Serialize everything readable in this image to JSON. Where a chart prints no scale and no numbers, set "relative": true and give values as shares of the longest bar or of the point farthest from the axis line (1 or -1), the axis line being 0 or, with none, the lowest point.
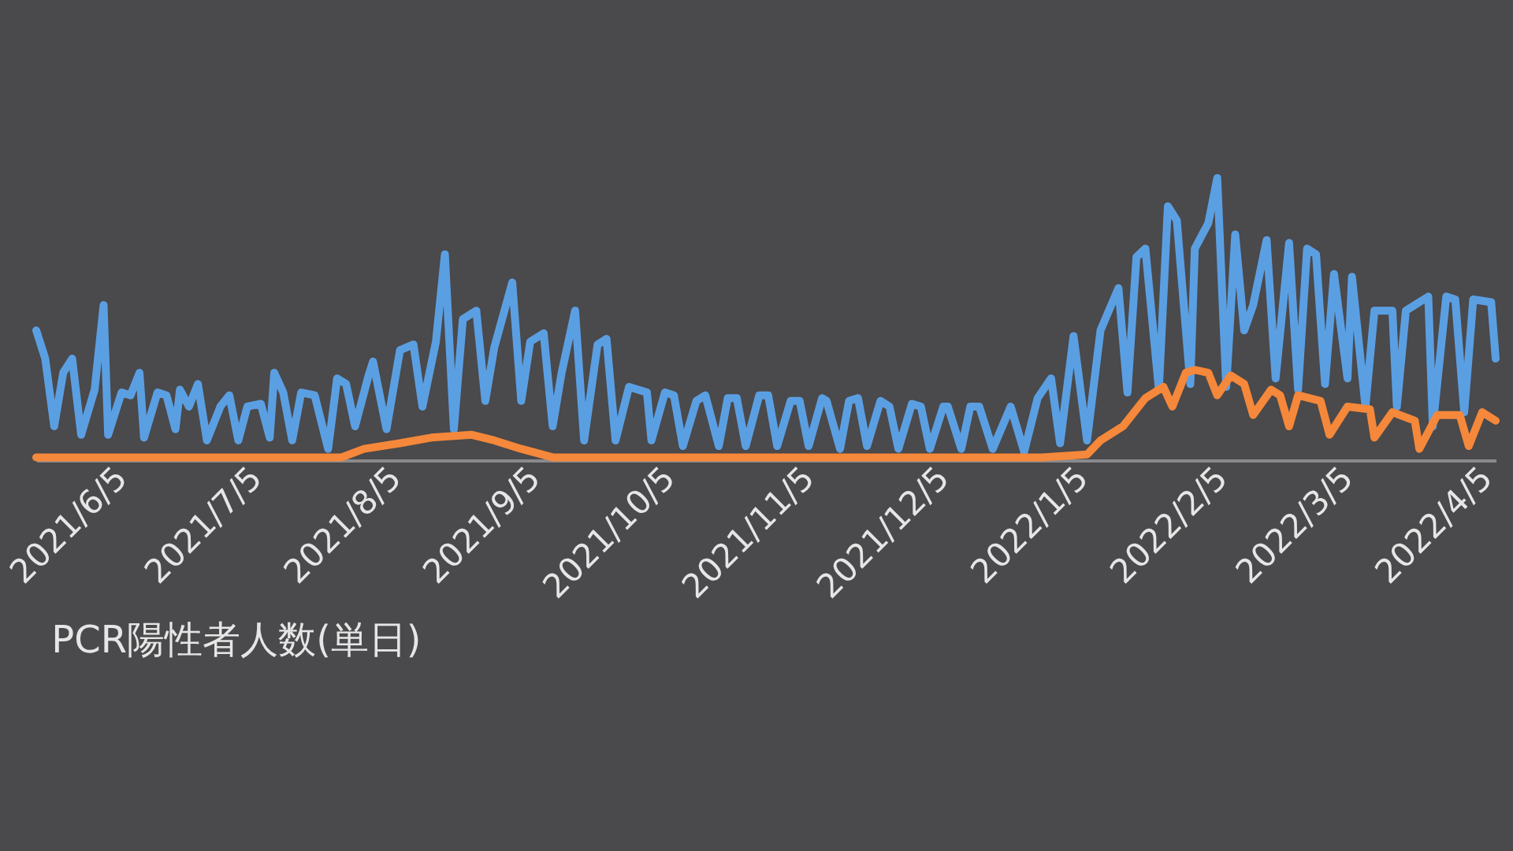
{
  "chart_data": {
    "type": "line",
    "title": "PCR陽性者人数(単日)",
    "relative": true,
    "tick_labels": "x",
    "xlim": [
      "2021-05-17",
      "2022-04-07"
    ],
    "xticks": [
      {
        "value": "2021-06-05",
        "label": "2021/6/5"
      },
      {
        "value": "2021-07-05",
        "label": "2021/7/5"
      },
      {
        "value": "2021-08-05",
        "label": "2021/8/5"
      },
      {
        "value": "2021-09-05",
        "label": "2021/9/5"
      },
      {
        "value": "2021-10-05",
        "label": "2021/10/5"
      },
      {
        "value": "2021-11-05",
        "label": "2021/11/5"
      },
      {
        "value": "2021-12-05",
        "label": "2021/12/5"
      },
      {
        "value": "2022-01-05",
        "label": "2022/1/5"
      },
      {
        "value": "2022-02-05",
        "label": "2022/2/5"
      },
      {
        "value": "2022-03-05",
        "label": "2022/3/5"
      },
      {
        "value": "2022-04-05",
        "label": "2022/4/5"
      }
    ],
    "series": [
      {
        "color": "#5b9fe3",
        "x": [
          "2021-05-17",
          "2021-05-19",
          "2021-05-21",
          "2021-05-23",
          "2021-05-25",
          "2021-05-27",
          "2021-05-30",
          "2021-06-01",
          "2021-06-02",
          "2021-06-05",
          "2021-06-07",
          "2021-06-09",
          "2021-06-10",
          "2021-06-13",
          "2021-06-15",
          "2021-06-17",
          "2021-06-18",
          "2021-06-20",
          "2021-06-22",
          "2021-06-24",
          "2021-06-27",
          "2021-06-29",
          "2021-07-01",
          "2021-07-03",
          "2021-07-06",
          "2021-07-08",
          "2021-07-09",
          "2021-07-11",
          "2021-07-13",
          "2021-07-15",
          "2021-07-18",
          "2021-07-21",
          "2021-07-23",
          "2021-07-25",
          "2021-07-27",
          "2021-07-30",
          "2021-07-31",
          "2021-08-03",
          "2021-08-06",
          "2021-08-09",
          "2021-08-11",
          "2021-08-14",
          "2021-08-16",
          "2021-08-18",
          "2021-08-20",
          "2021-08-23",
          "2021-08-25",
          "2021-08-27",
          "2021-08-31",
          "2021-09-02",
          "2021-09-04",
          "2021-09-07",
          "2021-09-09",
          "2021-09-11",
          "2021-09-14",
          "2021-09-16",
          "2021-09-19",
          "2021-09-21",
          "2021-09-23",
          "2021-09-26",
          "2021-09-30",
          "2021-10-01",
          "2021-10-04",
          "2021-10-06",
          "2021-10-08",
          "2021-10-11",
          "2021-10-13",
          "2021-10-16",
          "2021-10-18",
          "2021-10-20",
          "2021-10-22",
          "2021-10-25",
          "2021-10-27",
          "2021-10-29",
          "2021-11-01",
          "2021-11-03",
          "2021-11-05",
          "2021-11-08",
          "2021-11-09",
          "2021-11-12",
          "2021-11-14",
          "2021-11-16",
          "2021-11-18",
          "2021-11-21",
          "2021-11-23",
          "2021-11-25",
          "2021-11-28",
          "2021-11-30",
          "2021-12-02",
          "2021-12-05",
          "2021-12-06",
          "2021-12-09",
          "2021-12-11",
          "2021-12-13",
          "2021-12-16",
          "2021-12-20",
          "2021-12-23",
          "2021-12-26",
          "2021-12-29",
          "2021-12-31",
          "2022-01-03",
          "2022-01-06",
          "2022-01-09",
          "2022-01-13",
          "2022-01-15",
          "2022-01-17",
          "2022-01-19",
          "2022-01-22",
          "2022-01-24",
          "2022-01-26",
          "2022-01-29",
          "2022-01-30",
          "2022-02-02",
          "2022-02-04",
          "2022-02-06",
          "2022-02-08",
          "2022-02-10",
          "2022-02-12",
          "2022-02-15",
          "2022-02-17",
          "2022-02-20",
          "2022-02-22",
          "2022-02-24",
          "2022-02-26",
          "2022-02-28",
          "2022-03-02",
          "2022-03-05",
          "2022-03-06",
          "2022-03-09",
          "2022-03-11",
          "2022-03-15",
          "2022-03-16",
          "2022-03-18",
          "2022-03-23",
          "2022-03-24",
          "2022-03-27",
          "2022-03-29",
          "2022-03-31",
          "2022-04-02",
          "2022-04-06",
          "2022-04-07"
        ],
        "values": [
          0.46,
          0.36,
          0.12,
          0.31,
          0.36,
          0.09,
          0.25,
          0.55,
          0.09,
          0.24,
          0.23,
          0.31,
          0.08,
          0.24,
          0.23,
          0.11,
          0.25,
          0.19,
          0.27,
          0.07,
          0.19,
          0.23,
          0.07,
          0.19,
          0.2,
          0.08,
          0.31,
          0.24,
          0.07,
          0.24,
          0.23,
          0.04,
          0.29,
          0.27,
          0.12,
          0.3,
          0.35,
          0.11,
          0.39,
          0.41,
          0.19,
          0.42,
          0.73,
          0.11,
          0.5,
          0.53,
          0.21,
          0.4,
          0.63,
          0.21,
          0.42,
          0.45,
          0.12,
          0.31,
          0.53,
          0.07,
          0.41,
          0.43,
          0.07,
          0.26,
          0.24,
          0.07,
          0.24,
          0.23,
          0.05,
          0.21,
          0.23,
          0.05,
          0.22,
          0.22,
          0.05,
          0.23,
          0.23,
          0.05,
          0.21,
          0.21,
          0.05,
          0.22,
          0.21,
          0.04,
          0.21,
          0.22,
          0.05,
          0.21,
          0.19,
          0.04,
          0.2,
          0.19,
          0.04,
          0.19,
          0.19,
          0.04,
          0.19,
          0.19,
          0.04,
          0.19,
          0.03,
          0.22,
          0.29,
          0.06,
          0.44,
          0.07,
          0.46,
          0.61,
          0.24,
          0.72,
          0.75,
          0.25,
          0.9,
          0.85,
          0.27,
          0.75,
          0.84,
          1,
          0.26,
          0.8,
          0.46,
          0.55,
          0.78,
          0.29,
          0.77,
          0.25,
          0.75,
          0.73,
          0.27,
          0.66,
          0.29,
          0.65,
          0.19,
          0.53,
          0.53,
          0.19,
          0.53,
          0.58,
          0.12,
          0.58,
          0.57,
          0.17,
          0.57,
          0.56,
          0.36
        ]
      },
      {
        "color": "#f5883a",
        "x": [
          "2021-05-17",
          "2021-07-24",
          "2021-07-29",
          "2021-08-06",
          "2021-08-13",
          "2021-08-22",
          "2021-08-27",
          "2021-09-02",
          "2021-09-09",
          "2021-12-27",
          "2022-01-06",
          "2022-01-09",
          "2022-01-14",
          "2022-01-19",
          "2022-01-23",
          "2022-01-25",
          "2022-01-28",
          "2022-01-30",
          "2022-02-02",
          "2022-02-04",
          "2022-02-07",
          "2022-02-10",
          "2022-02-12",
          "2022-02-16",
          "2022-02-18",
          "2022-02-20",
          "2022-02-22",
          "2022-02-27",
          "2022-03-01",
          "2022-03-05",
          "2022-03-10",
          "2022-03-11",
          "2022-03-15",
          "2022-03-20",
          "2022-03-21",
          "2022-03-25",
          "2022-03-30",
          "2022-04-01",
          "2022-04-04",
          "2022-04-07"
        ],
        "values": [
          0.01,
          0.01,
          0.04,
          0.06,
          0.08,
          0.09,
          0.07,
          0.04,
          0.01,
          0.01,
          0.02,
          0.07,
          0.12,
          0.22,
          0.26,
          0.19,
          0.31,
          0.32,
          0.31,
          0.23,
          0.3,
          0.27,
          0.16,
          0.25,
          0.23,
          0.12,
          0.23,
          0.21,
          0.09,
          0.19,
          0.18,
          0.08,
          0.17,
          0.14,
          0.04,
          0.16,
          0.16,
          0.05,
          0.17,
          0.14
        ]
      }
    ]
  }
}
